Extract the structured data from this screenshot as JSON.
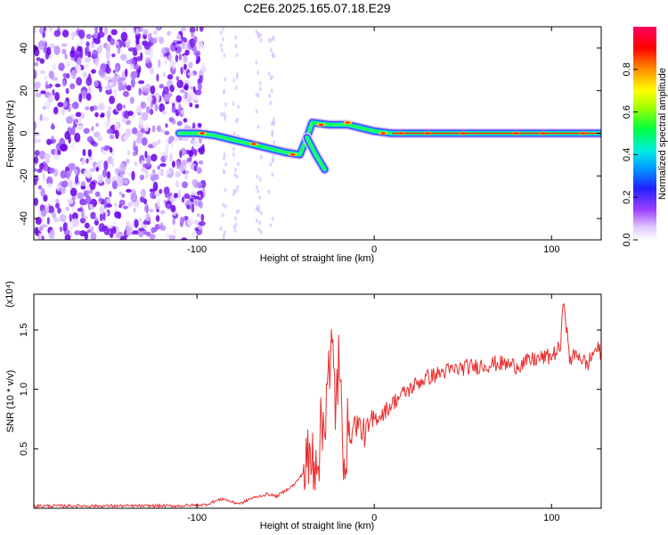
{
  "title": "C2E6.2025.165.07.18.E29",
  "chart_data": [
    {
      "type": "heatmap",
      "name": "spectrogram",
      "xlabel": "Height of straight line (km)",
      "ylabel": "Frequency (Hz)",
      "xlim": [
        -192,
        128
      ],
      "ylim": [
        -50,
        50
      ],
      "xticks": [
        -100,
        0,
        100
      ],
      "yticks": [
        -40,
        -20,
        0,
        20,
        40
      ],
      "colorbar": {
        "label": "Normalized spectral amplitude",
        "range": [
          0,
          1
        ],
        "ticks": [
          0.0,
          0.2,
          0.4,
          0.6,
          0.8
        ],
        "colors": [
          "#ffffff",
          "#c080ff",
          "#6600ff",
          "#0000ff",
          "#00c0ff",
          "#00ff80",
          "#60ff00",
          "#ffff00",
          "#ff8000",
          "#ff0000",
          "#ff0066"
        ]
      },
      "noise_region": {
        "x_from": -192,
        "x_to": -100
      },
      "ridge": [
        {
          "x": -110,
          "y": 0
        },
        {
          "x": -100,
          "y": 0
        },
        {
          "x": -90,
          "y": -1
        },
        {
          "x": -80,
          "y": -3
        },
        {
          "x": -70,
          "y": -5
        },
        {
          "x": -60,
          "y": -7
        },
        {
          "x": -50,
          "y": -9
        },
        {
          "x": -42,
          "y": -10
        },
        {
          "x": -38,
          "y": -2
        },
        {
          "x": -35,
          "y": 5
        },
        {
          "x": -25,
          "y": 4
        },
        {
          "x": -15,
          "y": 4
        },
        {
          "x": -5,
          "y": 2
        },
        {
          "x": 0,
          "y": 1
        },
        {
          "x": 10,
          "y": 0
        },
        {
          "x": 50,
          "y": 0
        },
        {
          "x": 100,
          "y": 0
        },
        {
          "x": 128,
          "y": 0
        }
      ],
      "branch": [
        {
          "x": -38,
          "y": -2
        },
        {
          "x": -33,
          "y": -10
        },
        {
          "x": -28,
          "y": -17
        }
      ]
    },
    {
      "type": "line",
      "name": "snr",
      "xlabel": "Height of straight line (km)",
      "ylabel": "SNR (10 * v/v)",
      "y_multiplier": "(x10⁴)",
      "xlim": [
        -192,
        128
      ],
      "ylim": [
        0,
        1.8
      ],
      "xticks": [
        -100,
        0,
        100
      ],
      "yticks": [
        0.5,
        1.0,
        1.5
      ],
      "color": "#e83030",
      "series": [
        {
          "x": [
            -192,
            -170,
            -150,
            -130,
            -110,
            -95,
            -90,
            -85,
            -80,
            -75,
            -70,
            -65,
            -60,
            -55,
            -50,
            -45,
            -40,
            -35,
            -32,
            -30,
            -28,
            -26,
            -25,
            -24,
            -22,
            -20,
            -18,
            -15,
            -10,
            -5,
            0,
            5,
            10,
            15,
            20,
            25,
            30,
            40,
            50,
            60,
            70,
            80,
            90,
            100,
            105,
            107,
            110,
            115,
            120,
            125,
            128
          ],
          "y": [
            0.02,
            0.02,
            0.02,
            0.02,
            0.02,
            0.03,
            0.06,
            0.08,
            0.05,
            0.04,
            0.08,
            0.1,
            0.12,
            0.1,
            0.15,
            0.2,
            0.3,
            0.42,
            0.5,
            0.6,
            0.75,
            1.3,
            0.9,
            1.38,
            0.9,
            1.2,
            0.55,
            0.6,
            0.72,
            0.62,
            0.75,
            0.8,
            0.88,
            0.95,
            1.0,
            1.06,
            1.1,
            1.15,
            1.18,
            1.2,
            1.22,
            1.2,
            1.25,
            1.28,
            1.35,
            1.78,
            1.25,
            1.3,
            1.2,
            1.35,
            1.3
          ]
        }
      ]
    }
  ]
}
